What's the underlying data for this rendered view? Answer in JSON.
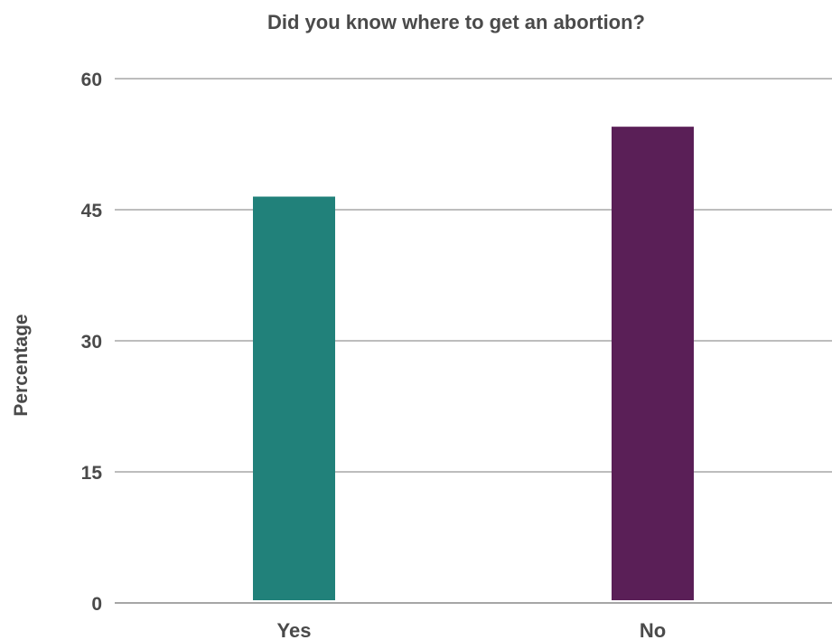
{
  "chart_data": {
    "type": "bar",
    "title": "Did you know where to get an abortion?",
    "xlabel": "",
    "ylabel": "Percentage",
    "categories": [
      "Yes",
      "No"
    ],
    "values": [
      46.5,
      54.5
    ],
    "colors": [
      "#21817a",
      "#5a1f57"
    ],
    "ylim": [
      0,
      60
    ],
    "yticks": [
      "0",
      "15",
      "30",
      "45",
      "60"
    ],
    "grid": true,
    "legend": "none"
  }
}
